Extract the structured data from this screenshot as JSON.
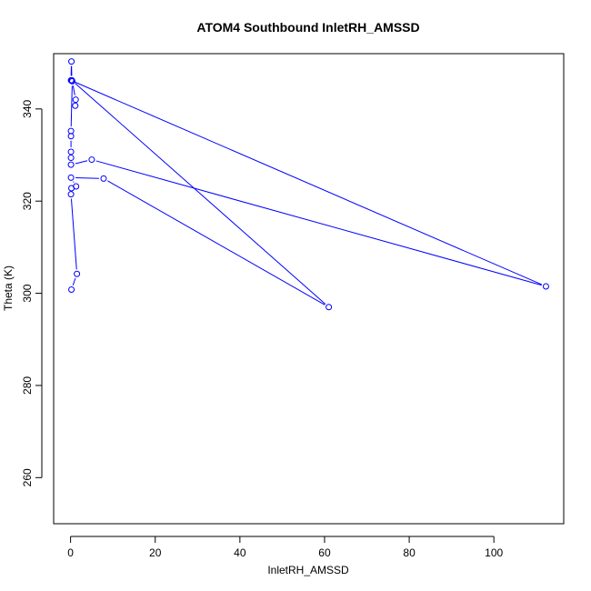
{
  "chart_data": {
    "type": "line",
    "title": "ATOM4 Southbound InletRH_AMSSD",
    "xlabel": "InletRH_AMSSD",
    "ylabel": "Theta (K)",
    "xlim": [
      -4,
      116.5
    ],
    "ylim": [
      250,
      352
    ],
    "xticks": [
      0,
      20,
      40,
      60,
      80,
      100
    ],
    "yticks": [
      260,
      280,
      300,
      320,
      340
    ],
    "grid": false,
    "legend": "none",
    "series_color": "#0000ff",
    "marker": "open-circle",
    "points": [
      {
        "x": 0.2,
        "y": 300.8
      },
      {
        "x": 1.5,
        "y": 304.2
      },
      {
        "x": 0.1,
        "y": 321.5
      },
      {
        "x": 0.2,
        "y": 322.8
      },
      {
        "x": 1.3,
        "y": 323.2
      },
      {
        "x": 0.1,
        "y": 325.1
      },
      {
        "x": 7.8,
        "y": 324.9
      },
      {
        "x": 61.0,
        "y": 297.0
      },
      {
        "x": 0.3,
        "y": 346.2
      },
      {
        "x": 0.2,
        "y": 350.3
      },
      {
        "x": 0.1,
        "y": 346.2
      },
      {
        "x": 112.3,
        "y": 301.5
      },
      {
        "x": 5.0,
        "y": 329.0
      },
      {
        "x": 0.1,
        "y": 327.9
      },
      {
        "x": 0.1,
        "y": 329.4
      },
      {
        "x": 0.1,
        "y": 330.7
      },
      {
        "x": 0.1,
        "y": 334.1
      },
      {
        "x": 0.1,
        "y": 335.2
      },
      {
        "x": 0.4,
        "y": 346.0
      },
      {
        "x": 1.2,
        "y": 342.0
      },
      {
        "x": 1.1,
        "y": 340.7
      }
    ]
  }
}
